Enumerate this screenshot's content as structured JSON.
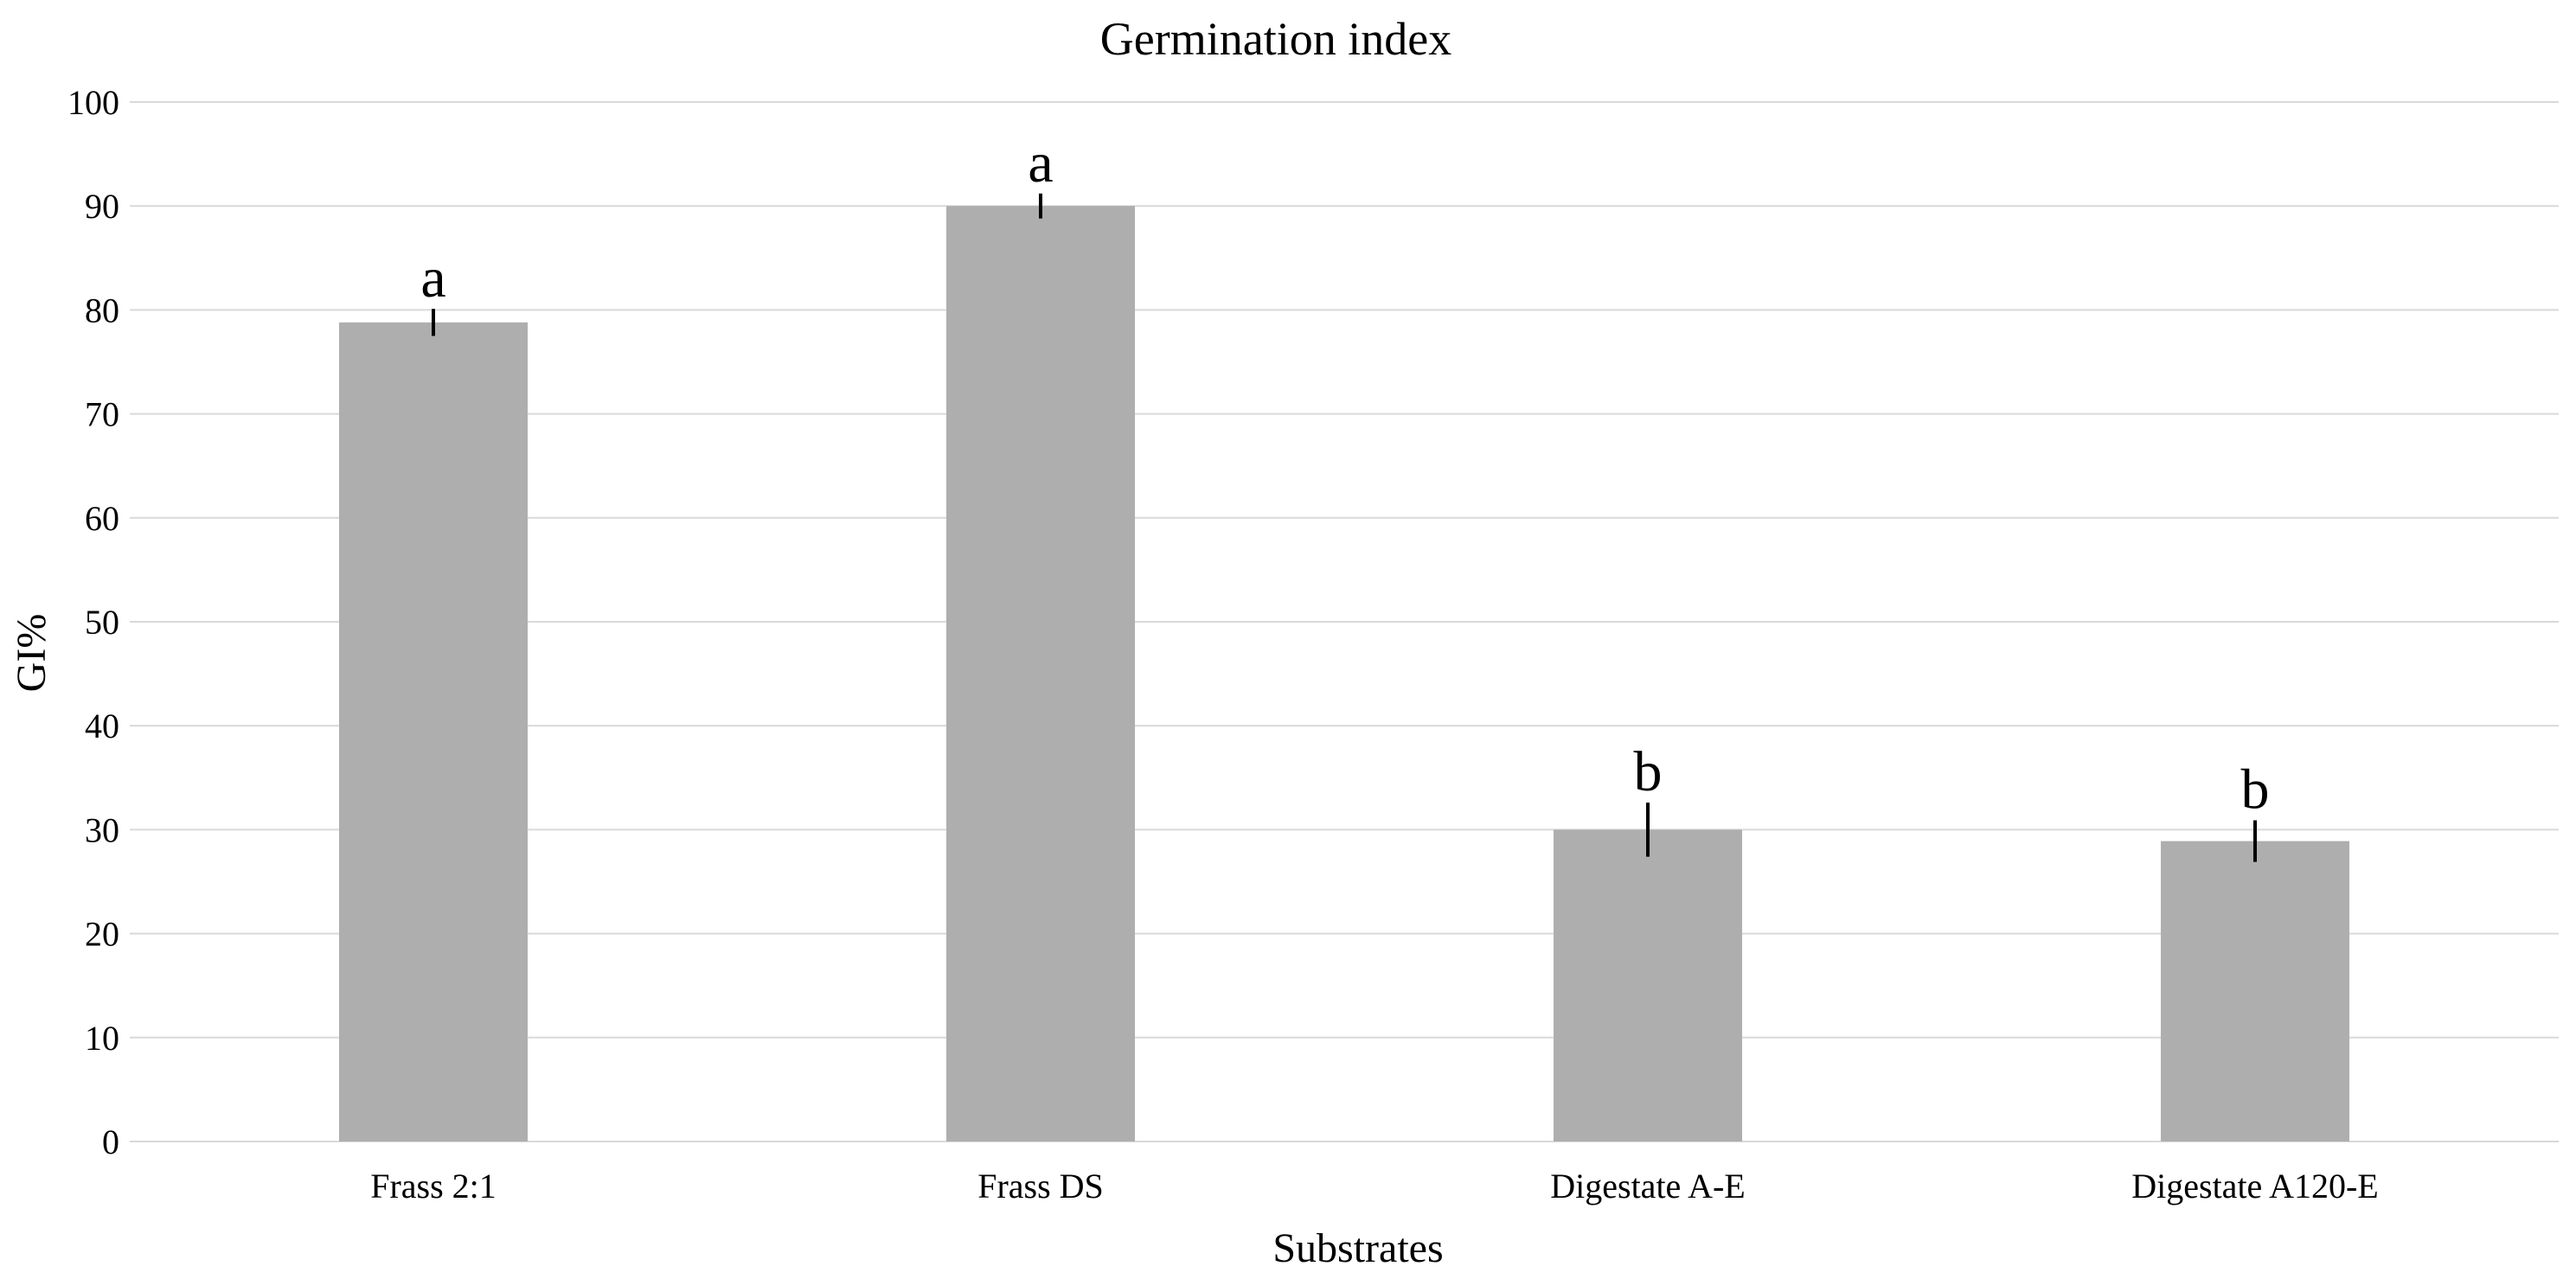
{
  "chart_data": {
    "type": "bar",
    "title": "Germination index",
    "xlabel": "Substrates",
    "ylabel": "GI%",
    "ylim": [
      0,
      100
    ],
    "yticks": [
      0,
      10,
      20,
      30,
      40,
      50,
      60,
      70,
      80,
      90,
      100
    ],
    "grid": true,
    "legend": "none",
    "categories": [
      "Frass 2:1",
      "Frass DS",
      "Digestate A-E",
      "Digestate A120-E"
    ],
    "values": [
      78.8,
      90.0,
      30.0,
      28.9
    ],
    "error": [
      1.3,
      1.2,
      2.6,
      2.0
    ],
    "significance": [
      "a",
      "a",
      "b",
      "b"
    ],
    "colors": {
      "bar": "#aeaeae",
      "grid": "#d9d9d9",
      "error_bar": "#000000"
    }
  }
}
